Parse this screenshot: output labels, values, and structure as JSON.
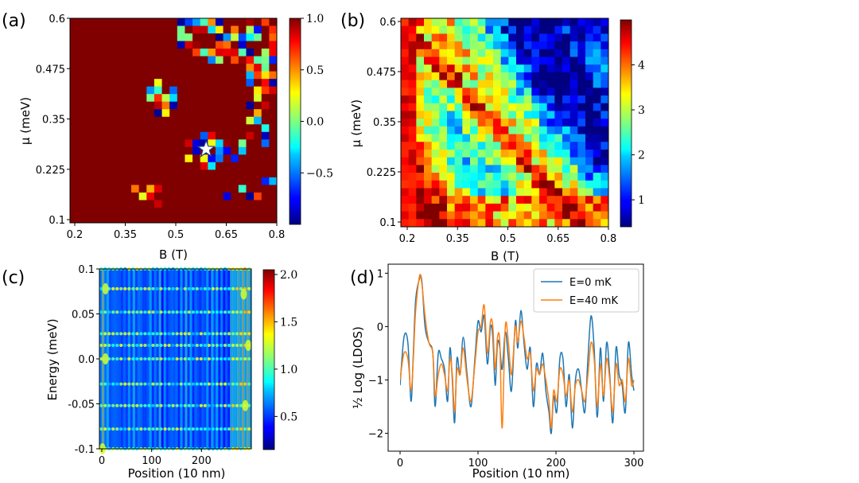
{
  "panels": {
    "a": {
      "label": "(a)",
      "chart_data": {
        "type": "heatmap",
        "xlabel": "B (T)",
        "ylabel": "μ (meV)",
        "xlim": [
          0.2,
          0.8
        ],
        "ylim": [
          0.1,
          0.6
        ],
        "xticks": [
          "0.2",
          "0.35",
          "0.5",
          "0.65",
          "0.8"
        ],
        "yticks": [
          "0.1",
          "0.225",
          "0.35",
          "0.475",
          "0.6"
        ],
        "colorbar": {
          "min": -1.0,
          "max": 1.0,
          "ticks": [
            "1.0",
            "0.5",
            "0.0",
            "−0.5"
          ]
        },
        "grid": {
          "cols": 27,
          "rows": 27
        },
        "marker": {
          "symbol": "star",
          "B": 0.595,
          "mu": 0.28
        },
        "description": "Mostly 1.0 (dark red); scattered negative/mixed values along the upper-right edge and two diagonal clusters near (0.47, 0.42) and (0.6, 0.27)."
      }
    },
    "b": {
      "label": "(b)",
      "chart_data": {
        "type": "heatmap",
        "xlabel": "B (T)",
        "ylabel": "μ (meV)",
        "xlim": [
          0.2,
          0.8
        ],
        "ylim": [
          0.1,
          0.6
        ],
        "xticks": [
          "0.2",
          "0.35",
          "0.5",
          "0.65",
          "0.8"
        ],
        "yticks": [
          "0.1",
          "0.225",
          "0.35",
          "0.475",
          "0.6"
        ],
        "colorbar": {
          "min": 0.4,
          "max": 5.0,
          "ticks": [
            "4",
            "3",
            "2",
            "1"
          ]
        },
        "grid": {
          "cols": 27,
          "rows": 27
        },
        "description": "High values (red) along low B; low values (blue) in the upper right; mixed green/yellow band across the middle."
      }
    },
    "c": {
      "label": "(c)",
      "chart_data": {
        "type": "heatmap",
        "xlabel": "Position (10 nm)",
        "ylabel": "Energy (meV)",
        "xlim": [
          0,
          300
        ],
        "ylim": [
          -0.1,
          0.1
        ],
        "xticks": [
          "0",
          "100",
          "200"
        ],
        "yticks": [
          "0.1",
          "0.05",
          "0.0",
          "-0.05",
          "-0.1"
        ],
        "colorbar": {
          "min": 0.15,
          "max": 2.05,
          "ticks": [
            "2.0",
            "1.5",
            "1.0",
            "0.5"
          ]
        },
        "bright_energy_lines_meV": [
          0.1,
          0.078,
          0.052,
          0.028,
          0.015,
          0.0,
          -0.028,
          -0.052,
          -0.078,
          -0.1
        ]
      }
    },
    "d": {
      "label": "(d)",
      "chart_data": {
        "type": "line",
        "xlabel": "Position (10 nm)",
        "ylabel": "½ Log (LDOS)",
        "xlim": [
          0,
          300
        ],
        "ylim": [
          -2.2,
          1.05
        ],
        "xticks": [
          "0",
          "100",
          "200",
          "300"
        ],
        "yticks": [
          "1",
          "0",
          "−1",
          "−2"
        ],
        "legend_position": "top-right",
        "series": [
          {
            "name": "E=0 mK",
            "color": "#1f77b4",
            "x": [
              0,
              5,
              10,
              14,
              17,
              20,
              25,
              28,
              32,
              37,
              42,
              45,
              49,
              53,
              57,
              61,
              64,
              67,
              70,
              73,
              77,
              81,
              86,
              91,
              96,
              100,
              104,
              108,
              112,
              116,
              119,
              122,
              125,
              128,
              131,
              135,
              139,
              143,
              148,
              151,
              155,
              159,
              163,
              167,
              171,
              175,
              179,
              183,
              187,
              191,
              194,
              197,
              201,
              205,
              209,
              213,
              217,
              221,
              225,
              229,
              233,
              237,
              241,
              245,
              249,
              253,
              257,
              261,
              265,
              269,
              273,
              277,
              281,
              285,
              289,
              293,
              297,
              300
            ],
            "y": [
              -1.1,
              -0.2,
              -0.3,
              -1.4,
              -0.5,
              0.5,
              0.9,
              0.85,
              0.0,
              -0.3,
              -0.5,
              -1.5,
              -0.5,
              -0.6,
              -0.8,
              -1.4,
              -0.4,
              -1.0,
              -1.8,
              -0.6,
              -0.9,
              -0.2,
              -0.9,
              -1.5,
              -0.6,
              0.1,
              -0.1,
              0.2,
              -0.7,
              0.0,
              -0.2,
              -1.1,
              -0.3,
              -0.4,
              -0.8,
              -0.1,
              -0.6,
              -1.2,
              0.1,
              -0.4,
              0.3,
              -0.3,
              -0.8,
              -0.4,
              -1.5,
              -0.7,
              -0.9,
              -0.5,
              -1.2,
              -1.6,
              -2.0,
              -1.3,
              -1.6,
              -0.6,
              -0.6,
              -1.5,
              -0.9,
              -1.9,
              -1.0,
              -0.8,
              -1.2,
              -1.6,
              -0.6,
              0.2,
              -0.4,
              -1.7,
              -0.4,
              -1.4,
              -0.3,
              -0.9,
              -1.8,
              -0.4,
              -0.9,
              -1.1,
              -1.6,
              -0.3,
              -0.9,
              -1.2
            ]
          },
          {
            "name": "E=40 mK",
            "color": "#ff7f0e",
            "x": [
              0,
              5,
              10,
              14,
              17,
              20,
              25,
              28,
              32,
              37,
              42,
              45,
              49,
              53,
              57,
              61,
              64,
              67,
              70,
              73,
              77,
              81,
              86,
              91,
              96,
              100,
              104,
              108,
              112,
              116,
              119,
              122,
              125,
              128,
              131,
              135,
              139,
              143,
              148,
              151,
              155,
              159,
              163,
              167,
              171,
              175,
              179,
              183,
              187,
              191,
              194,
              197,
              201,
              205,
              209,
              213,
              217,
              221,
              225,
              229,
              233,
              237,
              241,
              245,
              249,
              253,
              257,
              261,
              265,
              269,
              273,
              277,
              281,
              285,
              289,
              293,
              297,
              300
            ],
            "y": [
              -1.0,
              -0.5,
              -0.6,
              -1.2,
              -0.6,
              0.3,
              0.95,
              0.8,
              0.2,
              -0.3,
              -0.5,
              -1.3,
              -0.9,
              -0.7,
              -0.9,
              -1.2,
              -0.6,
              -0.9,
              -1.6,
              -0.8,
              -0.9,
              -0.4,
              -1.0,
              -1.4,
              -0.7,
              -0.1,
              0.0,
              0.4,
              -0.5,
              0.1,
              0.0,
              -0.8,
              -0.2,
              -0.3,
              -1.9,
              0.0,
              -0.3,
              -0.9,
              0.0,
              -0.3,
              0.1,
              -0.2,
              -0.6,
              -0.5,
              -1.2,
              -0.8,
              -0.9,
              -0.7,
              -1.0,
              -1.4,
              -1.9,
              -1.2,
              -1.4,
              -0.8,
              -0.9,
              -1.3,
              -1.0,
              -1.6,
              -1.1,
              -1.0,
              -1.2,
              -1.4,
              -0.9,
              -0.3,
              -0.6,
              -1.5,
              -0.7,
              -1.3,
              -0.6,
              -1.0,
              -1.6,
              -0.7,
              -1.1,
              -1.0,
              -1.4,
              -0.6,
              -1.1,
              -1.0
            ]
          }
        ]
      }
    }
  }
}
